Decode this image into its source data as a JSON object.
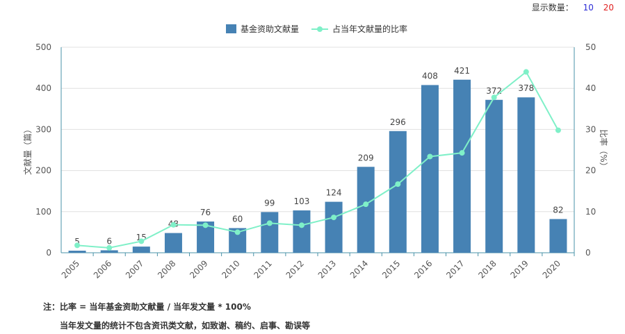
{
  "controls": {
    "label": "显示数量：",
    "options": [
      "10",
      "20"
    ],
    "option_colors": [
      "#2b2bd6",
      "#e02020"
    ]
  },
  "chart_data": {
    "type": "bar",
    "categories": [
      "2005",
      "2006",
      "2007",
      "2008",
      "2009",
      "2010",
      "2011",
      "2012",
      "2013",
      "2014",
      "2015",
      "2016",
      "2017",
      "2018",
      "2019",
      "2020"
    ],
    "series": [
      {
        "name": "基金资助文献量",
        "type": "bar",
        "axis": "left",
        "color": "#4682b4",
        "values": [
          5,
          6,
          15,
          48,
          76,
          60,
          99,
          103,
          124,
          209,
          296,
          408,
          421,
          372,
          378,
          82
        ]
      },
      {
        "name": "占当年文献量的比率",
        "type": "line",
        "axis": "right",
        "color": "#7ff0c8",
        "values": [
          1.8,
          1.2,
          2.8,
          6.8,
          6.7,
          5.0,
          7.2,
          6.7,
          8.6,
          11.8,
          16.7,
          23.4,
          24.3,
          37.8,
          44.0,
          29.8
        ]
      }
    ],
    "show_bar_labels": true,
    "ylabel": "文献量（篇）",
    "y2label": "比率（%）",
    "ylim": [
      0,
      500
    ],
    "y2lim": [
      0,
      50
    ],
    "yticks": [
      0,
      100,
      200,
      300,
      400,
      500
    ],
    "y2ticks": [
      0,
      10,
      20,
      30,
      40,
      50
    ],
    "grid": true,
    "legend": "top-center"
  },
  "notes": {
    "line1": "注：比率 = 当年基金资助文献量 / 当年发文量 * 100%",
    "line2": "当年发文量的统计不包含资讯类文献，如致谢、稿约、启事、勘误等"
  }
}
